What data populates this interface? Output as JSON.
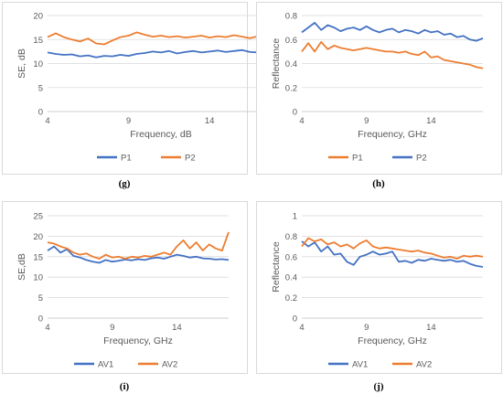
{
  "colors": {
    "blue": "#4472c4",
    "orange": "#ed7d31",
    "grid": "#d9d9d9",
    "text": "#595959"
  },
  "chart_data": [
    {
      "type": "line",
      "label": "(g)",
      "xlabel": "Frequency, dB",
      "ylabel": "SE, dB",
      "xlim": [
        4,
        18
      ],
      "ylim": [
        0,
        20
      ],
      "xticks": [
        4,
        9,
        14
      ],
      "yticks": [
        0,
        5,
        10,
        15,
        20
      ],
      "grid": "horizontal",
      "legend_position": "bottom",
      "series": [
        {
          "name": "P1",
          "color": "#4472c4",
          "x": [
            4.0,
            4.5,
            5.0,
            5.5,
            6.0,
            6.5,
            7.0,
            7.5,
            8.0,
            8.5,
            9.0,
            9.5,
            10.0,
            10.5,
            11.0,
            11.5,
            12.0,
            12.5,
            13.0,
            13.5,
            14.0,
            14.5,
            15.0,
            15.5,
            16.0,
            16.5,
            17.0,
            17.5,
            18.0
          ],
          "y": [
            12.3,
            12.0,
            11.8,
            11.9,
            11.5,
            11.7,
            11.3,
            11.6,
            11.5,
            11.8,
            11.6,
            12.0,
            12.2,
            12.5,
            12.3,
            12.6,
            12.1,
            12.4,
            12.6,
            12.3,
            12.5,
            12.7,
            12.4,
            12.6,
            12.8,
            12.4,
            12.3,
            12.6,
            11.9
          ]
        },
        {
          "name": "P2",
          "color": "#ed7d31",
          "x": [
            4.0,
            4.5,
            5.0,
            5.5,
            6.0,
            6.5,
            7.0,
            7.5,
            8.0,
            8.5,
            9.0,
            9.5,
            10.0,
            10.5,
            11.0,
            11.5,
            12.0,
            12.5,
            13.0,
            13.5,
            14.0,
            14.5,
            15.0,
            15.5,
            16.0,
            16.5,
            17.0,
            17.5,
            18.0
          ],
          "y": [
            15.5,
            16.3,
            15.5,
            15.0,
            14.6,
            15.2,
            14.2,
            14.0,
            14.8,
            15.5,
            15.8,
            16.5,
            16.0,
            15.6,
            15.8,
            15.5,
            15.7,
            15.4,
            15.6,
            15.8,
            15.4,
            15.7,
            15.5,
            15.9,
            15.6,
            15.3,
            15.7,
            15.5,
            15.2
          ]
        }
      ]
    },
    {
      "type": "line",
      "label": "(h)",
      "xlabel": "Frequency, GHz",
      "ylabel": "Reflectance",
      "xlim": [
        4,
        18
      ],
      "ylim": [
        0,
        0.8
      ],
      "xticks": [
        4,
        9,
        14
      ],
      "yticks": [
        0,
        0.2,
        0.4,
        0.6,
        0.8
      ],
      "grid": "horizontal",
      "legend_position": "bottom",
      "series": [
        {
          "name": "P1",
          "color": "#ed7d31",
          "x": [
            4.0,
            4.5,
            5.0,
            5.5,
            6.0,
            6.5,
            7.0,
            7.5,
            8.0,
            8.5,
            9.0,
            9.5,
            10.0,
            10.5,
            11.0,
            11.5,
            12.0,
            12.5,
            13.0,
            13.5,
            14.0,
            14.5,
            15.0,
            15.5,
            16.0,
            16.5,
            17.0,
            17.5,
            18.0
          ],
          "y": [
            0.5,
            0.57,
            0.5,
            0.58,
            0.52,
            0.55,
            0.53,
            0.52,
            0.51,
            0.52,
            0.53,
            0.52,
            0.51,
            0.5,
            0.5,
            0.49,
            0.5,
            0.48,
            0.47,
            0.5,
            0.45,
            0.46,
            0.43,
            0.42,
            0.41,
            0.4,
            0.39,
            0.37,
            0.36
          ]
        },
        {
          "name": "P2",
          "color": "#4472c4",
          "x": [
            4.0,
            4.5,
            5.0,
            5.5,
            6.0,
            6.5,
            7.0,
            7.5,
            8.0,
            8.5,
            9.0,
            9.5,
            10.0,
            10.5,
            11.0,
            11.5,
            12.0,
            12.5,
            13.0,
            13.5,
            14.0,
            14.5,
            15.0,
            15.5,
            16.0,
            16.5,
            17.0,
            17.5,
            18.0
          ],
          "y": [
            0.66,
            0.7,
            0.74,
            0.68,
            0.72,
            0.7,
            0.67,
            0.69,
            0.7,
            0.68,
            0.71,
            0.68,
            0.66,
            0.68,
            0.69,
            0.66,
            0.68,
            0.67,
            0.65,
            0.68,
            0.66,
            0.67,
            0.64,
            0.65,
            0.62,
            0.63,
            0.6,
            0.59,
            0.61
          ]
        }
      ]
    },
    {
      "type": "line",
      "label": "(i)",
      "xlabel": "Frequency, GHz",
      "ylabel": "SE,dB",
      "xlim": [
        4,
        18
      ],
      "ylim": [
        0,
        25
      ],
      "xticks": [
        4,
        9,
        14
      ],
      "yticks": [
        0,
        5,
        10,
        15,
        20,
        25
      ],
      "grid": "horizontal",
      "legend_position": "bottom",
      "series": [
        {
          "name": "AV1",
          "color": "#4472c4",
          "x": [
            4.0,
            4.5,
            5.0,
            5.5,
            6.0,
            6.5,
            7.0,
            7.5,
            8.0,
            8.5,
            9.0,
            9.5,
            10.0,
            10.5,
            11.0,
            11.5,
            12.0,
            12.5,
            13.0,
            13.5,
            14.0,
            14.5,
            15.0,
            15.5,
            16.0,
            16.5,
            17.0,
            17.5,
            18.0
          ],
          "y": [
            16.5,
            17.5,
            16.0,
            16.8,
            15.2,
            14.8,
            14.2,
            13.8,
            13.5,
            14.2,
            13.8,
            14.0,
            14.3,
            14.1,
            14.4,
            14.2,
            14.6,
            14.8,
            14.5,
            15.0,
            15.5,
            15.2,
            14.8,
            15.0,
            14.6,
            14.5,
            14.3,
            14.4,
            14.2
          ]
        },
        {
          "name": "AV2",
          "color": "#ed7d31",
          "x": [
            4.0,
            4.5,
            5.0,
            5.5,
            6.0,
            6.5,
            7.0,
            7.5,
            8.0,
            8.5,
            9.0,
            9.5,
            10.0,
            10.5,
            11.0,
            11.5,
            12.0,
            12.5,
            13.0,
            13.5,
            14.0,
            14.5,
            15.0,
            15.5,
            16.0,
            16.5,
            17.0,
            17.5,
            18.0
          ],
          "y": [
            18.5,
            18.2,
            17.5,
            17.0,
            16.0,
            15.5,
            15.8,
            15.0,
            14.5,
            15.5,
            14.8,
            15.0,
            14.5,
            15.0,
            14.8,
            15.2,
            15.0,
            15.5,
            16.0,
            15.5,
            17.5,
            19.0,
            17.0,
            18.5,
            16.5,
            18.0,
            17.0,
            16.5,
            21.0
          ]
        }
      ]
    },
    {
      "type": "line",
      "label": "(j)",
      "xlabel": "Frequency, GHz",
      "ylabel": "Reflectance",
      "xlim": [
        4,
        18
      ],
      "ylim": [
        0,
        1
      ],
      "xticks": [
        4,
        9,
        14
      ],
      "yticks": [
        0,
        0.2,
        0.4,
        0.6,
        0.8,
        1
      ],
      "grid": "horizontal",
      "legend_position": "bottom",
      "series": [
        {
          "name": "AV1",
          "color": "#4472c4",
          "x": [
            4.0,
            4.5,
            5.0,
            5.5,
            6.0,
            6.5,
            7.0,
            7.5,
            8.0,
            8.5,
            9.0,
            9.5,
            10.0,
            10.5,
            11.0,
            11.5,
            12.0,
            12.5,
            13.0,
            13.5,
            14.0,
            14.5,
            15.0,
            15.5,
            16.0,
            16.5,
            17.0,
            17.5,
            18.0
          ],
          "y": [
            0.75,
            0.7,
            0.74,
            0.65,
            0.7,
            0.62,
            0.63,
            0.55,
            0.52,
            0.6,
            0.62,
            0.65,
            0.62,
            0.63,
            0.65,
            0.55,
            0.56,
            0.54,
            0.57,
            0.56,
            0.58,
            0.57,
            0.56,
            0.57,
            0.55,
            0.56,
            0.53,
            0.51,
            0.5
          ]
        },
        {
          "name": "AV2",
          "color": "#ed7d31",
          "x": [
            4.0,
            4.5,
            5.0,
            5.5,
            6.0,
            6.5,
            7.0,
            7.5,
            8.0,
            8.5,
            9.0,
            9.5,
            10.0,
            10.5,
            11.0,
            11.5,
            12.0,
            12.5,
            13.0,
            13.5,
            14.0,
            14.5,
            15.0,
            15.5,
            16.0,
            16.5,
            17.0,
            17.5,
            18.0
          ],
          "y": [
            0.7,
            0.78,
            0.75,
            0.77,
            0.72,
            0.74,
            0.7,
            0.72,
            0.68,
            0.73,
            0.76,
            0.7,
            0.68,
            0.69,
            0.68,
            0.67,
            0.66,
            0.65,
            0.66,
            0.64,
            0.63,
            0.61,
            0.59,
            0.6,
            0.58,
            0.61,
            0.6,
            0.61,
            0.6
          ]
        }
      ]
    }
  ]
}
